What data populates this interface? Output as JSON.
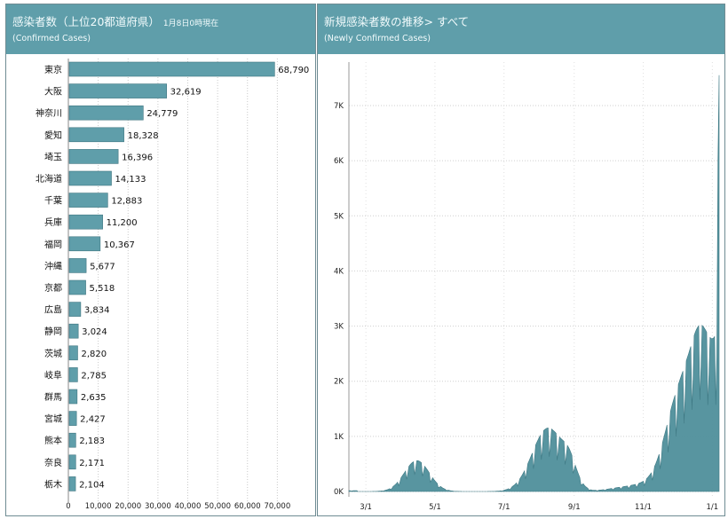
{
  "left_panel": {
    "title": "感染者数（上位20都道府県）",
    "as_of": "1月8日0時現在",
    "subtitle": "(Confirmed Cases)"
  },
  "right_panel": {
    "title": "新規感染者数の推移> すべて",
    "subtitle": "(Newly Confirmed Cases)"
  },
  "colors": {
    "header": "#5f9eaa",
    "bar": "#5f9eaa",
    "bar_stroke": "#3f7580",
    "area": "#4f8f9b"
  },
  "chart_data": [
    {
      "type": "bar",
      "orientation": "horizontal",
      "categories": [
        "東京",
        "大阪",
        "神奈川",
        "愛知",
        "埼玉",
        "北海道",
        "千葉",
        "兵庫",
        "福岡",
        "沖縄",
        "京都",
        "広島",
        "静岡",
        "茨城",
        "岐阜",
        "群馬",
        "宮城",
        "熊本",
        "奈良",
        "栃木"
      ],
      "values": [
        68790,
        32619,
        24779,
        18328,
        16396,
        14133,
        12883,
        11200,
        10367,
        5677,
        5518,
        3834,
        3024,
        2820,
        2785,
        2635,
        2427,
        2183,
        2171,
        2104
      ],
      "value_labels": [
        "68,790",
        "32,619",
        "24,779",
        "18,328",
        "16,396",
        "14,133",
        "12,883",
        "11,200",
        "10,367",
        "5,677",
        "5,518",
        "3,834",
        "3,024",
        "2,820",
        "2,785",
        "2,635",
        "2,427",
        "2,183",
        "2,171",
        "2,104"
      ],
      "xticks": [
        "0",
        "10,000",
        "20,000",
        "30,000",
        "40,000",
        "50,000",
        "60,000",
        "70,000"
      ],
      "xlim": [
        0,
        80000
      ],
      "grid": true
    },
    {
      "type": "area",
      "x_range": [
        "2020-02-15",
        "2021-01-07"
      ],
      "xticks": [
        "3/1",
        "5/1",
        "7/1",
        "9/1",
        "11/1",
        "1/1"
      ],
      "yticks": [
        "0K",
        "1K",
        "2K",
        "3K",
        "4K",
        "5K",
        "6K",
        "7K"
      ],
      "ylim": [
        0,
        7800
      ],
      "grid": true,
      "series_monthly_approx": {
        "dates": [
          "2020-03-01",
          "2020-04-10",
          "2020-05-01",
          "2020-06-01",
          "2020-07-01",
          "2020-08-05",
          "2020-09-01",
          "2020-10-01",
          "2020-11-01",
          "2020-12-01",
          "2021-01-07"
        ],
        "values": [
          20,
          650,
          250,
          40,
          200,
          1400,
          600,
          550,
          800,
          2400,
          7550
        ]
      }
    }
  ]
}
